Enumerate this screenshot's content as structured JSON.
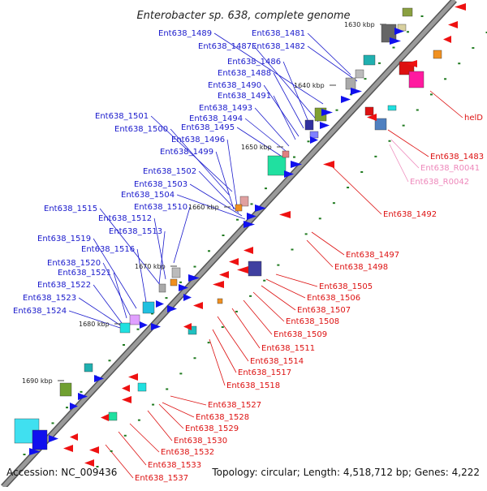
{
  "title": "Enterobacter sp. 638, complete genome",
  "accession": "Accession: NC_009436",
  "topology": "Topology: circular; Length: 4,518,712 bp; Genes: 4,222",
  "colors": {
    "forward_label": "#1a1acc",
    "reverse_label": "#dd1111",
    "rna_label": "#ee88bb",
    "forward_gene": "#1010ee",
    "reverse_gene": "#ee1111",
    "backbone": "#7a7a7a"
  },
  "scale_marks": [
    {
      "text": "1630 kbp"
    },
    {
      "text": "1640 kbp"
    },
    {
      "text": "1650 kbp"
    },
    {
      "text": "1660 kbp"
    },
    {
      "text": "1670 kbp"
    },
    {
      "text": "1680 kbp"
    },
    {
      "text": "1690 kbp"
    }
  ],
  "forward_labels": [
    "Ent638_1489",
    "Ent638_1481",
    "Ent638_1487",
    "Ent638_1482",
    "Ent638_1486",
    "Ent638_1488",
    "Ent638_1490",
    "Ent638_1491",
    "Ent638_1493",
    "Ent638_1494",
    "Ent638_1501",
    "Ent638_1495",
    "Ent638_1500",
    "Ent638_1496",
    "Ent638_1499",
    "Ent638_1502",
    "Ent638_1503",
    "Ent638_1504",
    "Ent638_1510",
    "Ent638_1515",
    "Ent638_1512",
    "Ent638_1513",
    "Ent638_1519",
    "Ent638_1516",
    "Ent638_1520",
    "Ent638_1521",
    "Ent638_1522",
    "Ent638_1523",
    "Ent638_1524"
  ],
  "reverse_labels": [
    "helD",
    "Ent638_1483",
    "Ent638_1492",
    "Ent638_1497",
    "Ent638_1498",
    "Ent638_1505",
    "Ent638_1506",
    "Ent638_1507",
    "Ent638_1508",
    "Ent638_1509",
    "Ent638_1511",
    "Ent638_1514",
    "Ent638_1517",
    "Ent638_1518",
    "Ent638_1527",
    "Ent638_1528",
    "Ent638_1529",
    "Ent638_1530",
    "Ent638_1532",
    "Ent638_1533",
    "Ent638_1537"
  ],
  "rna_labels": [
    "Ent638_R0041",
    "Ent638_R0042"
  ]
}
